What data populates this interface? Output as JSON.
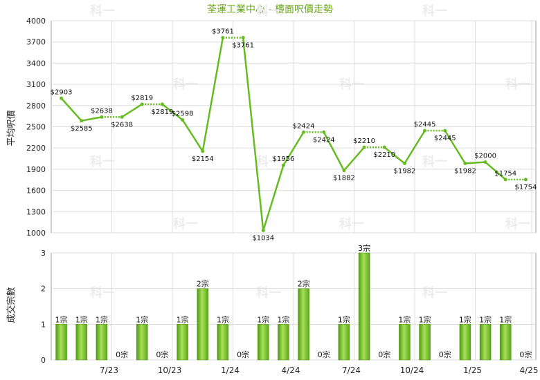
{
  "title": "荃運工業中心 - 樓面呎價走勢",
  "watermark": "科一",
  "chart_data": [
    {
      "type": "line",
      "ylabel": "平均呎價",
      "ylim": [
        1000,
        4000
      ],
      "yticks": [
        1000,
        1300,
        1600,
        1900,
        2200,
        2500,
        2800,
        3100,
        3400,
        3700,
        4000
      ],
      "x_tick_labels": [
        "7/23",
        "10/23",
        "1/24",
        "4/24",
        "7/24",
        "10/24",
        "1/25",
        "4/25"
      ],
      "series": [
        {
          "name": "",
          "values": [
            2903,
            2585,
            2638,
            2638,
            2819,
            2819,
            2598,
            2154,
            3761,
            3761,
            1034,
            1956,
            2424,
            2424,
            1882,
            2210,
            2210,
            1982,
            2445,
            2445,
            1982,
            2000,
            1754,
            1754
          ]
        }
      ],
      "value_labels": [
        "$2903",
        "$2585",
        "$2638",
        "$2638",
        "$2819",
        "$2819",
        "$2598",
        "$2154",
        "$3761",
        "$3761",
        "$1034",
        "$1956",
        "$2424",
        "$2424",
        "$1882",
        "$2210",
        "$2210",
        "$1982",
        "$2445",
        "$2445",
        "$1982",
        "$2000",
        "$1754",
        "$1754"
      ],
      "dotted_segments": [
        2,
        4,
        8,
        12,
        15,
        18,
        22
      ],
      "grid": true,
      "color": "#66bb22"
    },
    {
      "type": "bar",
      "ylabel": "成交宗數",
      "ylim": [
        0,
        3
      ],
      "yticks": [
        0,
        1,
        2,
        3
      ],
      "x_tick_labels": [
        "7/23",
        "10/23",
        "1/24",
        "4/24",
        "7/24",
        "10/24",
        "1/25",
        "4/25"
      ],
      "values": [
        1,
        1,
        1,
        0,
        1,
        0,
        1,
        2,
        1,
        0,
        1,
        1,
        2,
        0,
        1,
        3,
        0,
        1,
        1,
        0,
        1,
        1,
        1,
        0
      ],
      "value_labels": [
        "1宗",
        "1宗",
        "1宗",
        "0宗",
        "1宗",
        "0宗",
        "1宗",
        "2宗",
        "1宗",
        "0宗",
        "1宗",
        "1宗",
        "2宗",
        "0宗",
        "1宗",
        "3宗",
        "0宗",
        "1宗",
        "1宗",
        "0宗",
        "1宗",
        "1宗",
        "1宗",
        "0宗"
      ],
      "grid": true,
      "color": "#66bb22"
    }
  ]
}
